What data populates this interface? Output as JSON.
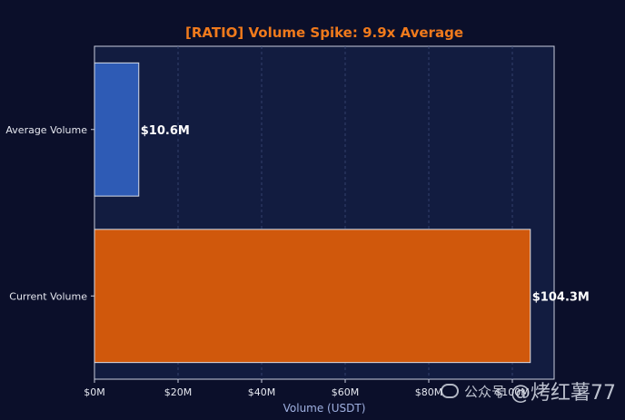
{
  "chart_data": {
    "type": "bar",
    "orientation": "horizontal",
    "title": "[RATIO] Volume Spike: 9.9x Average",
    "xlabel": "Volume (USDT)",
    "ylabel": "",
    "categories": [
      "Average Volume",
      "Current Volume"
    ],
    "values": [
      10.6,
      104.3
    ],
    "unit": "M USDT",
    "data_labels": [
      "$10.6M",
      "$104.3M"
    ],
    "bar_colors": [
      "#2e5bb5",
      "#d0580c"
    ],
    "xlim": [
      0,
      110
    ],
    "x_ticks": [
      0,
      20,
      40,
      60,
      80,
      100
    ],
    "x_tick_labels": [
      "$0M",
      "$20M",
      "$40M",
      "$60M",
      "$80M",
      "$100M"
    ],
    "grid": "vertical dashed",
    "legend": "none"
  },
  "colors": {
    "background": "#0b0f2a",
    "plot_area": "#121c40",
    "title": "#f07a1c",
    "axis_label": "#9fb0e0",
    "tick_text": "#e6e8f0"
  },
  "watermark": {
    "text_small": "公众号",
    "text_big": "@烤红薯77"
  }
}
